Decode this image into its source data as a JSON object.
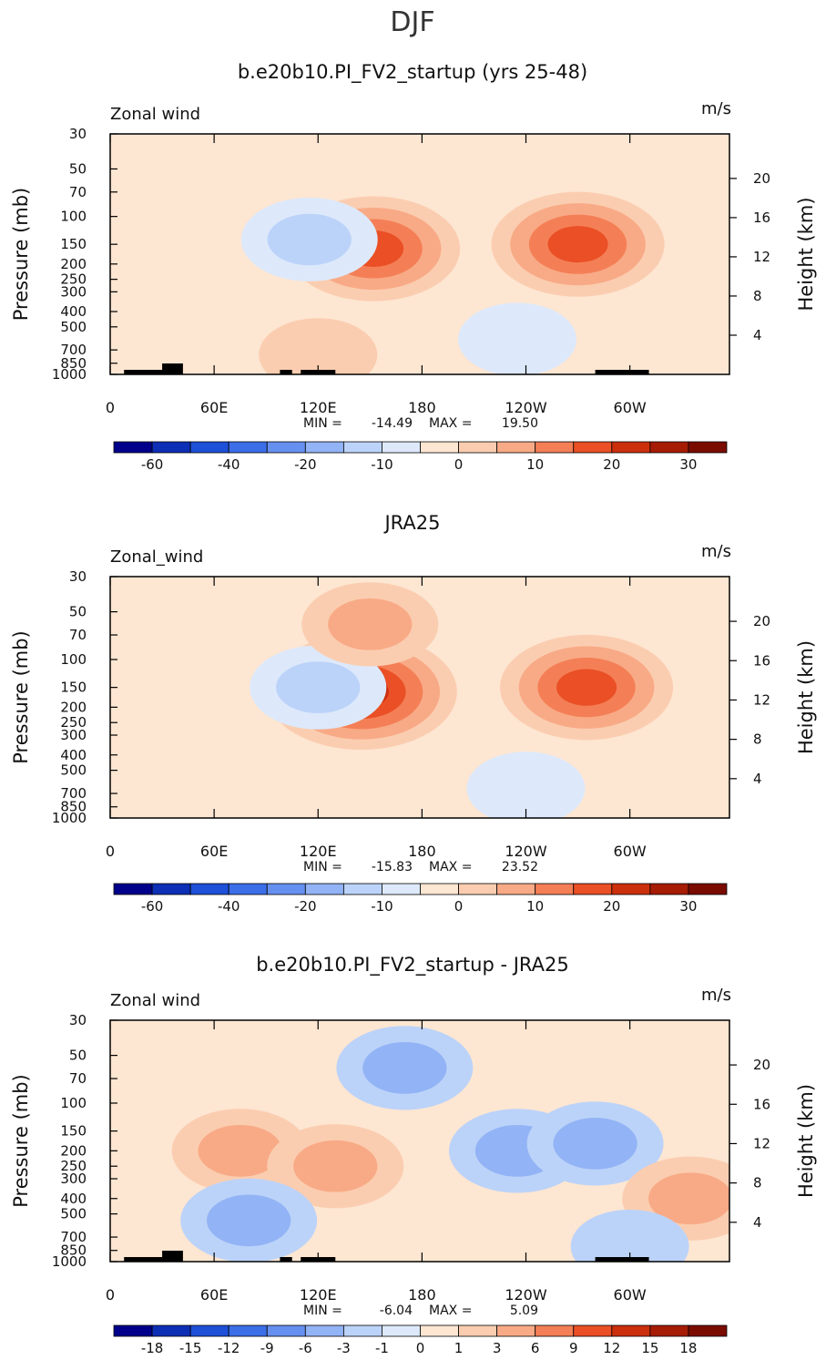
{
  "figure": {
    "title": "DJF"
  },
  "chart_data": [
    {
      "type": "heatmap",
      "title": "b.e20b10.PI_FV2_startup (yrs 25-48)",
      "variable_label": "Zonal wind",
      "units": "m/s",
      "x_ticks": [
        "0",
        "60E",
        "120E",
        "180",
        "120W",
        "60W"
      ],
      "x_tick_values": [
        0,
        60,
        120,
        180,
        240,
        300
      ],
      "xlim": [
        0,
        357.5
      ],
      "ylabel_left": "Pressure (mb)",
      "ylabel_right": "Height (km)",
      "pressure_ticks": [
        "30",
        "50",
        "70",
        "100",
        "150",
        "200",
        "250",
        "300",
        "400",
        "500",
        "700",
        "850",
        "1000"
      ],
      "pressure_values": [
        30,
        50,
        70,
        100,
        150,
        200,
        250,
        300,
        400,
        500,
        700,
        850,
        1000
      ],
      "height_ticks": [
        "4",
        "8",
        "12",
        "16",
        "20"
      ],
      "height_values": [
        4,
        8,
        12,
        16,
        20
      ],
      "stats": {
        "min_label": "MIN =",
        "min": "-14.49",
        "max_label": "MAX =",
        "max": "19.50"
      },
      "colorbar": {
        "labels": [
          "-60",
          "-40",
          "-20",
          "-10",
          "0",
          "10",
          "20",
          "30"
        ],
        "label_boundaries": [
          1,
          3,
          5,
          7,
          9,
          11,
          13,
          15
        ],
        "n_bins": 16
      },
      "features": [
        {
          "lon": 152,
          "p": 160,
          "value": 19.5
        },
        {
          "lon": 270,
          "p": 150,
          "value": 15
        },
        {
          "lon": 115,
          "p": 140,
          "value": -12
        },
        {
          "lon": 235,
          "p": 600,
          "value": -8
        },
        {
          "lon": 120,
          "p": 750,
          "value": 4
        },
        {
          "lon": 110,
          "p": 60,
          "value": -4
        }
      ]
    },
    {
      "type": "heatmap",
      "title": "JRA25",
      "variable_label": "Zonal_wind",
      "units": "m/s",
      "x_ticks": [
        "0",
        "60E",
        "120E",
        "180",
        "120W",
        "60W"
      ],
      "x_tick_values": [
        0,
        60,
        120,
        180,
        240,
        300
      ],
      "xlim": [
        0,
        357.5
      ],
      "ylabel_left": "Pressure (mb)",
      "ylabel_right": "Height (km)",
      "pressure_ticks": [
        "30",
        "50",
        "70",
        "100",
        "150",
        "200",
        "250",
        "300",
        "400",
        "500",
        "700",
        "850",
        "1000"
      ],
      "pressure_values": [
        30,
        50,
        70,
        100,
        150,
        200,
        250,
        300,
        400,
        500,
        700,
        850,
        1000
      ],
      "height_ticks": [
        "4",
        "8",
        "12",
        "16",
        "20"
      ],
      "height_values": [
        4,
        8,
        12,
        16,
        20
      ],
      "stats": {
        "min_label": "MIN =",
        "min": "-15.83",
        "max_label": "MAX =",
        "max": "23.52"
      },
      "colorbar": {
        "labels": [
          "-60",
          "-40",
          "-20",
          "-10",
          "0",
          "10",
          "20",
          "30"
        ],
        "label_boundaries": [
          1,
          3,
          5,
          7,
          9,
          11,
          13,
          15
        ],
        "n_bins": 16
      },
      "features": [
        {
          "lon": 145,
          "p": 160,
          "value": 23.5
        },
        {
          "lon": 275,
          "p": 150,
          "value": 18
        },
        {
          "lon": 120,
          "p": 150,
          "value": -15
        },
        {
          "lon": 240,
          "p": 650,
          "value": -7
        },
        {
          "lon": 90,
          "p": 300,
          "value": -5
        },
        {
          "lon": 150,
          "p": 60,
          "value": 5
        }
      ]
    },
    {
      "type": "heatmap",
      "title": "b.e20b10.PI_FV2_startup - JRA25",
      "variable_label": "Zonal wind",
      "units": "m/s",
      "x_ticks": [
        "0",
        "60E",
        "120E",
        "180",
        "120W",
        "60W"
      ],
      "x_tick_values": [
        0,
        60,
        120,
        180,
        240,
        300
      ],
      "xlim": [
        0,
        357.5
      ],
      "ylabel_left": "Pressure (mb)",
      "ylabel_right": "Height (km)",
      "pressure_ticks": [
        "30",
        "50",
        "70",
        "100",
        "150",
        "200",
        "250",
        "300",
        "400",
        "500",
        "700",
        "850",
        "1000"
      ],
      "pressure_values": [
        30,
        50,
        70,
        100,
        150,
        200,
        250,
        300,
        400,
        500,
        700,
        850,
        1000
      ],
      "height_ticks": [
        "4",
        "8",
        "12",
        "16",
        "20"
      ],
      "height_values": [
        4,
        8,
        12,
        16,
        20
      ],
      "stats": {
        "min_label": "MIN =",
        "min": "-6.04",
        "max_label": "MAX =",
        "max": "5.09"
      },
      "colorbar": {
        "labels": [
          "-18",
          "-15",
          "-12",
          "-9",
          "-6",
          "-3",
          "-1",
          "0",
          "1",
          "3",
          "6",
          "9",
          "12",
          "15",
          "18"
        ],
        "label_boundaries": [
          1,
          2,
          3,
          4,
          5,
          6,
          7,
          8,
          9,
          10,
          11,
          12,
          13,
          14,
          15
        ],
        "n_bins": 16
      },
      "features": [
        {
          "lon": 235,
          "p": 200,
          "value": -6
        },
        {
          "lon": 280,
          "p": 180,
          "value": -5
        },
        {
          "lon": 75,
          "p": 200,
          "value": 4
        },
        {
          "lon": 130,
          "p": 250,
          "value": 4.5
        },
        {
          "lon": 335,
          "p": 400,
          "value": 4
        },
        {
          "lon": 80,
          "p": 550,
          "value": -4
        },
        {
          "lon": 170,
          "p": 60,
          "value": -5
        },
        {
          "lon": 300,
          "p": 800,
          "value": -3
        }
      ]
    }
  ]
}
